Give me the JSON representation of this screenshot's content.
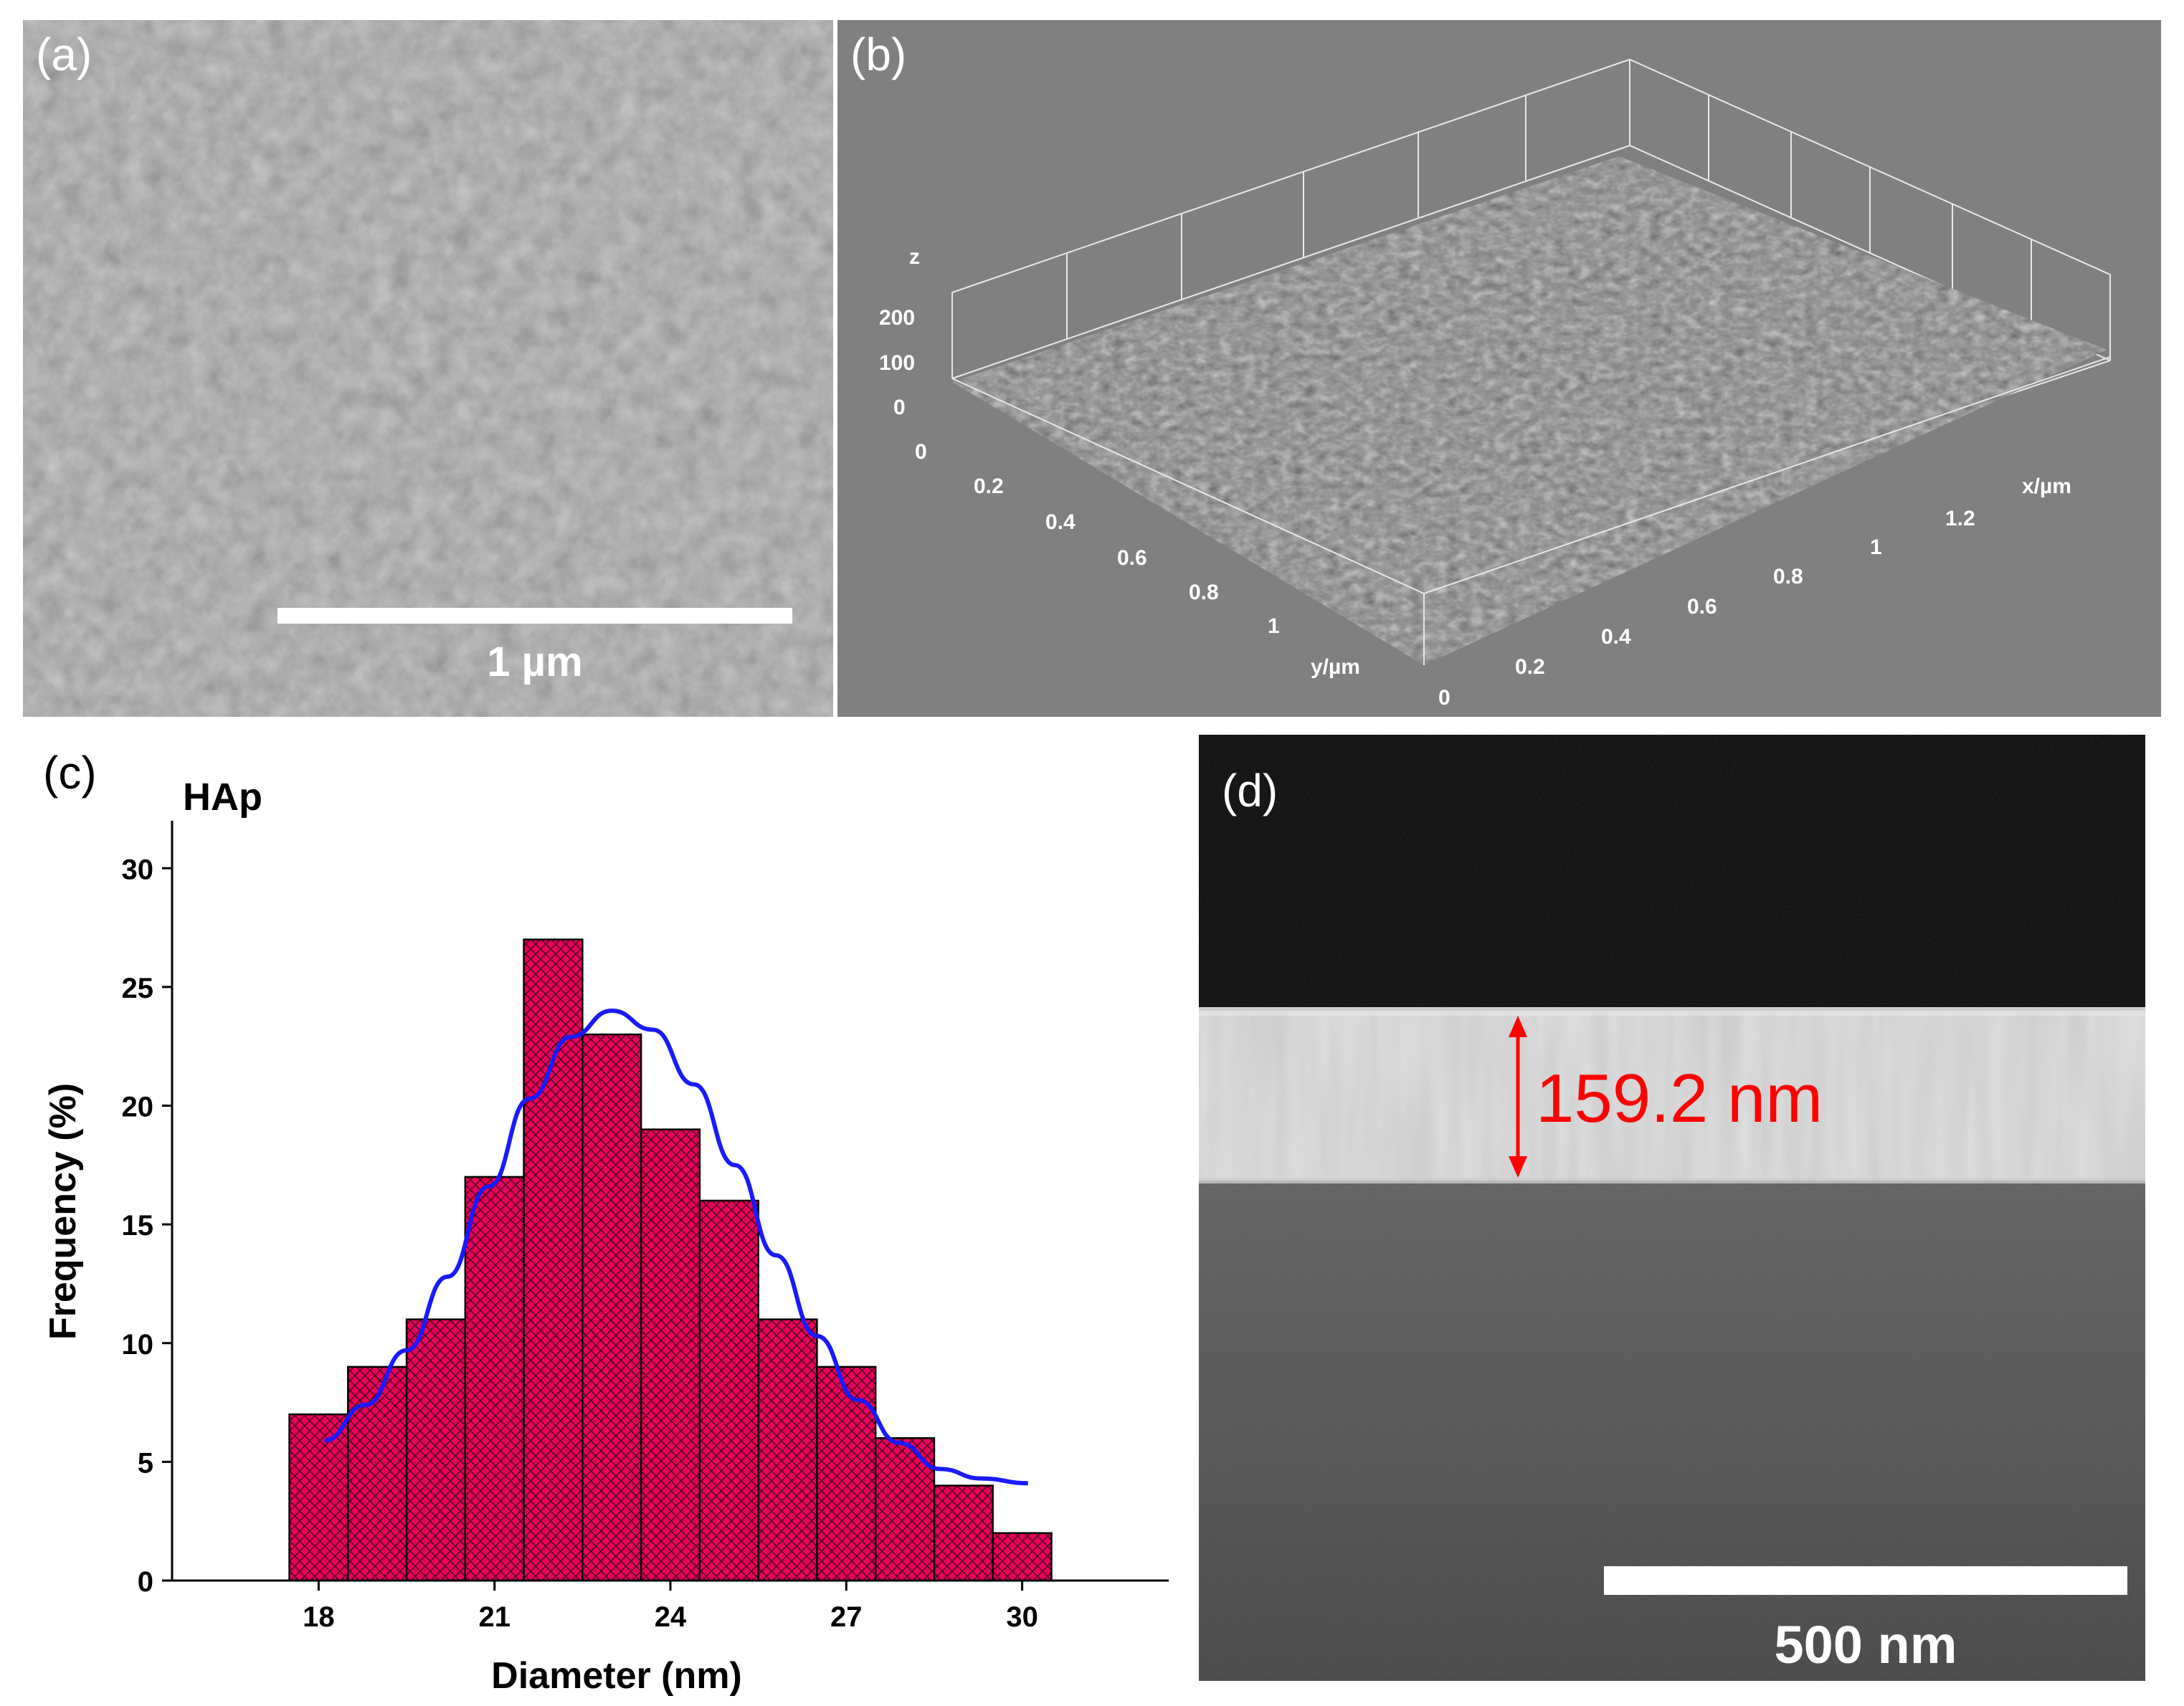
{
  "figure": {
    "panel_a": {
      "label": "(a)",
      "scale_label": "1 µm"
    },
    "panel_b": {
      "label": "(b)",
      "z_axis": {
        "label": "z",
        "ticks": [
          "200",
          "100",
          "0",
          "0"
        ]
      },
      "x_axis": {
        "label": "x/µm",
        "ticks": [
          "0.2",
          "0.4",
          "0.6",
          "0.8",
          "1",
          "1.2"
        ]
      },
      "y_axis": {
        "label": "y/µm",
        "ticks": [
          "0.2",
          "0.4",
          "0.6",
          "0.8",
          "1"
        ]
      },
      "origin_label": "0"
    },
    "panel_c": {
      "label": "(c)"
    },
    "panel_d": {
      "label": "(d)",
      "thickness_label": "159.2 nm",
      "scale_label": "500 nm"
    }
  },
  "colors": {
    "bar_fill": "#e8005a",
    "fit_line": "#1a1aff",
    "annotation": "#ff0000",
    "afm_background": "#808080"
  },
  "chart_data": {
    "type": "bar",
    "title": "HAp",
    "xlabel": "Diameter (nm)",
    "ylabel": "Frequency (%)",
    "xlim": [
      15.5,
      32.5
    ],
    "ylim": [
      0,
      32
    ],
    "x_ticks": [
      18,
      21,
      24,
      27,
      30
    ],
    "y_ticks": [
      0,
      5,
      10,
      15,
      20,
      25,
      30
    ],
    "bin_width": 1,
    "categories": [
      18,
      19,
      20,
      21,
      22,
      23,
      24,
      25,
      26,
      27,
      28,
      29,
      30
    ],
    "values": [
      7,
      9,
      11,
      17,
      27,
      23,
      19,
      16,
      11,
      9,
      6,
      4,
      2
    ],
    "fit": {
      "type": "gaussian",
      "x": [
        18.1,
        18.8,
        19.5,
        20.2,
        20.9,
        21.6,
        22.3,
        23.0,
        23.7,
        24.4,
        25.1,
        25.8,
        26.5,
        27.2,
        27.9,
        28.6,
        29.3,
        30.1
      ],
      "y": [
        5.9,
        7.4,
        9.7,
        12.8,
        16.6,
        20.3,
        22.9,
        24.0,
        23.2,
        20.9,
        17.5,
        13.7,
        10.3,
        7.6,
        5.8,
        4.7,
        4.3,
        4.1
      ]
    }
  }
}
